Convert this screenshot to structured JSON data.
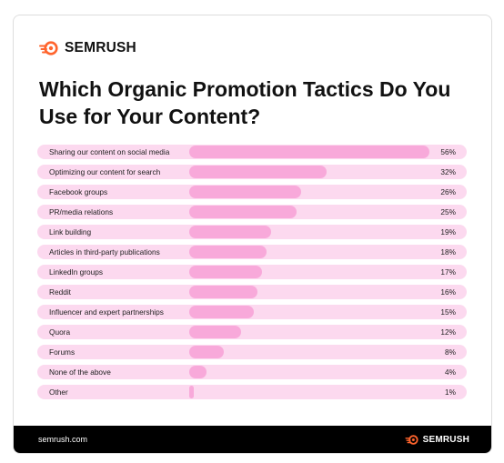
{
  "brand": {
    "name": "SEMRUSH",
    "icon": "semrush-fire-icon",
    "accent": "#ff642d"
  },
  "title": "Which Organic Promotion Tactics Do You Use for Your Content?",
  "footer": {
    "url": "semrush.com",
    "brand_name": "SEMRUSH"
  },
  "colors": {
    "row_bg": "#fcd9ef",
    "bar": "#f8a9da",
    "footer_bg": "#000000"
  },
  "chart_data": {
    "type": "bar",
    "orientation": "horizontal",
    "title": "Which Organic Promotion Tactics Do You Use for Your Content?",
    "categories": [
      "Sharing our content on social media",
      "Optimizing our content for search",
      "Facebook groups",
      "PR/media relations",
      "Link building",
      "Articles in third-party publications",
      "LinkedIn groups",
      "Reddit",
      "Influencer and expert partnerships",
      "Quora",
      "Forums",
      "None of the above",
      "Other"
    ],
    "values": [
      56,
      32,
      26,
      25,
      19,
      18,
      17,
      16,
      15,
      12,
      8,
      4,
      1
    ],
    "value_labels": [
      "56%",
      "32%",
      "26%",
      "25%",
      "19%",
      "18%",
      "17%",
      "16%",
      "15%",
      "12%",
      "8%",
      "4%",
      "1%"
    ],
    "xlim": [
      0,
      56
    ],
    "unit": "%",
    "grid": false,
    "legend": "none"
  }
}
